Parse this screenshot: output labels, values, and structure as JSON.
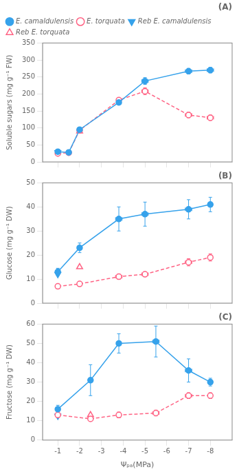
{
  "chart_data": [
    {
      "type": "line",
      "title": "(A)",
      "y_label": "Soluble sugars (mg g⁻¹ FW)",
      "xlim": [
        -0.3,
        -9.0
      ],
      "xticks": [
        -1,
        -2,
        -3,
        -4,
        -5,
        -6,
        -7,
        -8
      ],
      "ylim": [
        0,
        350
      ],
      "yticks": [
        0,
        50,
        100,
        150,
        200,
        250,
        300,
        350
      ],
      "grid": false,
      "legend": "upper left",
      "tick_labels": "y",
      "series": [
        {
          "name": "E. camaldulensis",
          "type": "line",
          "line_style": "solid",
          "marker": "filled circle",
          "x": [
            -1.0,
            -1.5,
            -2.0,
            -3.8,
            -5.0,
            -7.0,
            -8.0
          ],
          "values": [
            30,
            28,
            95,
            175,
            238,
            267,
            270
          ],
          "yerr": [
            3,
            3,
            6,
            5,
            10,
            8,
            8
          ],
          "xerr": [
            0.05,
            0.05,
            0.1,
            0.1,
            0.15,
            0.15,
            0.15
          ]
        },
        {
          "name": "E. torquata",
          "type": "line",
          "line_style": "dashed",
          "marker": "open circle",
          "x": [
            -1.0,
            -1.5,
            -2.0,
            -3.8,
            -5.0,
            -7.0,
            -8.0
          ],
          "values": [
            25,
            27,
            93,
            182,
            208,
            138,
            130
          ],
          "yerr": [
            3,
            3,
            5,
            5,
            10,
            8,
            8
          ],
          "xerr": [
            0.05,
            0.05,
            0.1,
            0.1,
            0.15,
            0.15,
            0.15
          ]
        },
        {
          "name": "Reb E. camaldulensis",
          "type": "scatter",
          "marker": "filled triangle down",
          "x": [
            -1.0
          ],
          "values": [
            28
          ]
        },
        {
          "name": "Reb E. torquata",
          "type": "scatter",
          "marker": "open triangle up",
          "x": [
            -2.0
          ],
          "values": [
            90
          ]
        }
      ]
    },
    {
      "type": "line",
      "title": "(B)",
      "y_label": "Glucose (mg g⁻¹ DW)",
      "xlim": [
        -0.3,
        -9.0
      ],
      "xticks": [
        -1,
        -2,
        -3,
        -4,
        -5,
        -6,
        -7,
        -8
      ],
      "ylim": [
        0,
        50
      ],
      "yticks": [
        0,
        10,
        20,
        30,
        40,
        50
      ],
      "grid": false,
      "tick_labels": "y",
      "series": [
        {
          "name": "E. camaldulensis",
          "type": "line",
          "line_style": "solid",
          "marker": "filled circle",
          "x": [
            -1.0,
            -2.0,
            -3.8,
            -5.0,
            -7.0,
            -8.0
          ],
          "values": [
            13,
            23,
            35,
            37,
            39,
            41
          ],
          "yerr": [
            1.5,
            2,
            5,
            5,
            4,
            3
          ],
          "xerr": [
            0.05,
            0.1,
            0.15,
            0.15,
            0.15,
            0.1
          ]
        },
        {
          "name": "E. torquata",
          "type": "line",
          "line_style": "dashed",
          "marker": "open circle",
          "x": [
            -1.0,
            -2.0,
            -3.8,
            -5.0,
            -7.0,
            -8.0
          ],
          "values": [
            7,
            8,
            11,
            12,
            17,
            19
          ],
          "yerr": [
            0.8,
            1,
            1,
            1,
            1.5,
            1.5
          ],
          "xerr": [
            0.05,
            0.1,
            0.15,
            0.15,
            0.15,
            0.1
          ]
        },
        {
          "name": "Reb E. camaldulensis",
          "type": "scatter",
          "marker": "filled triangle down",
          "x": [
            -1.0
          ],
          "values": [
            12
          ]
        },
        {
          "name": "Reb E. torquata",
          "type": "scatter",
          "marker": "open triangle up",
          "x": [
            -2.0
          ],
          "values": [
            15
          ]
        }
      ]
    },
    {
      "type": "line",
      "title": "(C)",
      "y_label": "Fructose (mg g⁻¹ DW)",
      "x_label": "Ψₚₐ(MPa)",
      "xlim": [
        -0.3,
        -9.0
      ],
      "xticks": [
        -1,
        -2,
        -3,
        -4,
        -5,
        -6,
        -7,
        -8
      ],
      "ylim": [
        0,
        60
      ],
      "yticks": [
        0,
        10,
        20,
        30,
        40,
        50,
        60
      ],
      "grid": false,
      "series": [
        {
          "name": "E. camaldulensis",
          "type": "line",
          "line_style": "solid",
          "marker": "filled circle",
          "x": [
            -1.0,
            -2.5,
            -3.8,
            -5.5,
            -7.0,
            -8.0
          ],
          "values": [
            16,
            31,
            50,
            51,
            36,
            30
          ],
          "yerr": [
            2,
            8,
            5,
            8,
            6,
            2
          ],
          "xerr": [
            0.05,
            0.1,
            0.1,
            0.15,
            0.15,
            0.1
          ]
        },
        {
          "name": "E. torquata",
          "type": "line",
          "line_style": "dashed",
          "marker": "open circle",
          "x": [
            -1.0,
            -2.5,
            -3.8,
            -5.5,
            -7.0,
            -8.0
          ],
          "values": [
            13,
            11,
            13,
            14,
            23,
            23
          ],
          "yerr": [
            1,
            1,
            1.5,
            1.5,
            1.5,
            1.5
          ],
          "xerr": [
            0.05,
            0.1,
            0.1,
            0.15,
            0.15,
            0.1
          ]
        },
        {
          "name": "Reb E. camaldulensis",
          "type": "scatter",
          "marker": "filled triangle down",
          "x": [
            -1.0
          ],
          "values": [
            12.5
          ]
        },
        {
          "name": "Reb E. torquata",
          "type": "scatter",
          "marker": "open triangle up",
          "x": [
            -2.5
          ],
          "values": [
            13
          ]
        }
      ]
    }
  ]
}
